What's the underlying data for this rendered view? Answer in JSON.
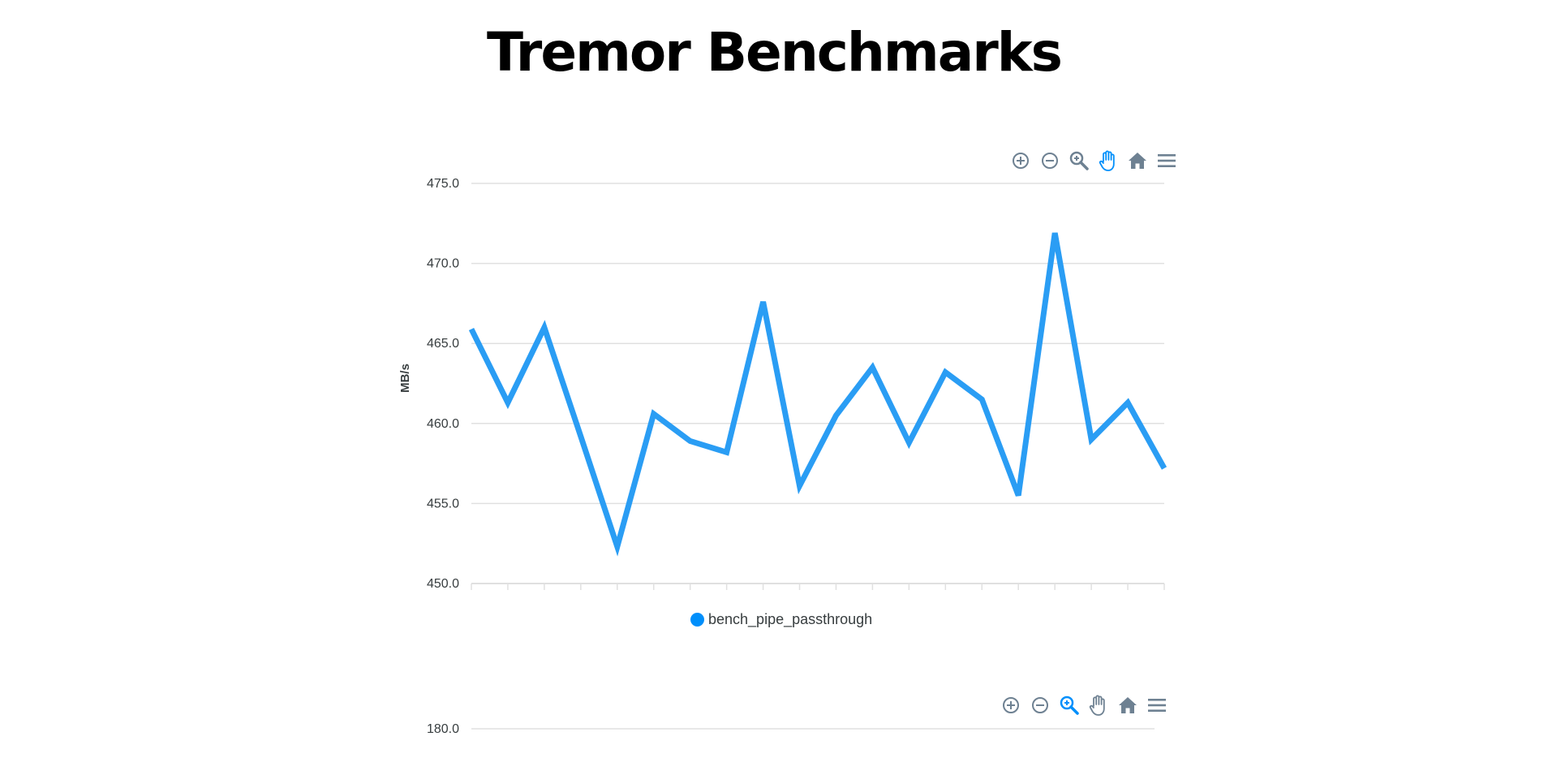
{
  "page": {
    "title": "Tremor Benchmarks"
  },
  "colors": {
    "series": "#2a9df4",
    "legend_marker": "#008ffb",
    "grid": "#e0e0e0",
    "toolbar_icon": "#6e8192",
    "toolbar_active": "#008ffb",
    "text": "#373d3f"
  },
  "toolbar_icons": [
    "zoom-in-icon",
    "zoom-out-icon",
    "selection-zoom-icon",
    "pan-hand-icon",
    "home-reset-icon",
    "menu-icon"
  ],
  "chart_data": [
    {
      "type": "line",
      "ylabel": "MB/s",
      "ylim": [
        450,
        475
      ],
      "ytick_labels": [
        "475.0",
        "470.0",
        "465.0",
        "460.0",
        "455.0",
        "450.0"
      ],
      "grid": true,
      "legend_position": "bottom-center",
      "active_tool": "pan",
      "series": [
        {
          "name": "bench_pipe_passthrough",
          "values": [
            465.9,
            461.3,
            466.0,
            459.2,
            452.3,
            460.6,
            458.9,
            458.2,
            467.6,
            456.1,
            460.5,
            463.5,
            458.8,
            463.2,
            461.5,
            455.5,
            471.9,
            459.0,
            461.3,
            457.2
          ]
        }
      ]
    },
    {
      "type": "line",
      "active_tool": "zoom",
      "ytick_labels": [
        "180.0"
      ],
      "series": []
    }
  ]
}
